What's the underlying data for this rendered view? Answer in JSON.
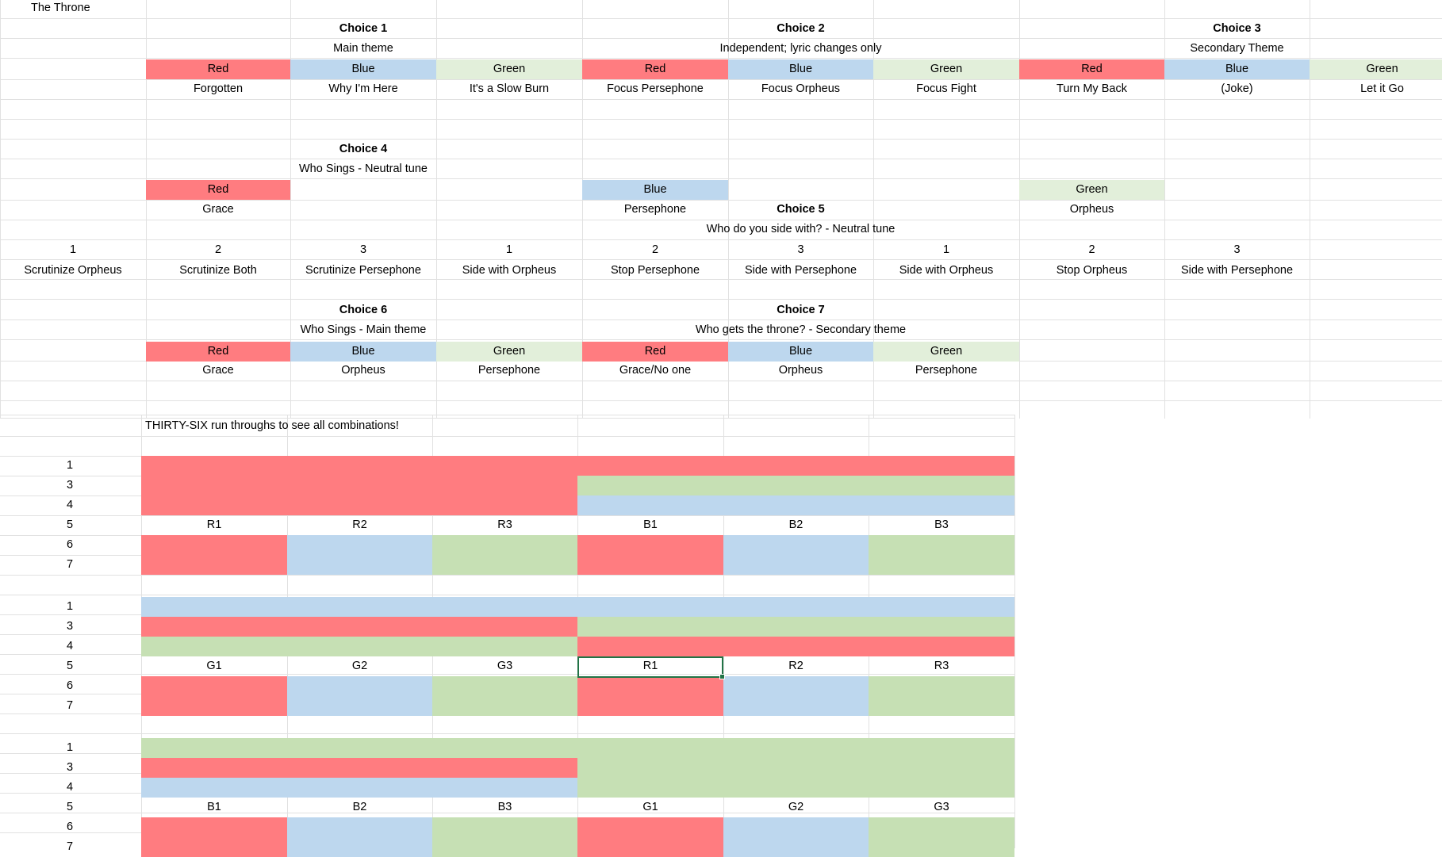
{
  "colors": {
    "red": "#ff7c80",
    "blue": "#bdd7ee",
    "green_light": "#e2efda",
    "green": "#c6e0b4",
    "selection": "#217346"
  },
  "sheet": {
    "title": "The Throne",
    "choice1": {
      "title": "Choice 1",
      "subtitle": "Main theme",
      "options": [
        {
          "color": "Red",
          "label": "Forgotten"
        },
        {
          "color": "Blue",
          "label": "Why I'm Here"
        },
        {
          "color": "Green",
          "label": "It's a Slow Burn"
        }
      ]
    },
    "choice2": {
      "title": "Choice 2",
      "subtitle": "Independent; lyric changes only",
      "options": [
        {
          "color": "Red",
          "label": "Focus Persephone"
        },
        {
          "color": "Blue",
          "label": "Focus Orpheus"
        },
        {
          "color": "Green",
          "label": "Focus Fight"
        }
      ]
    },
    "choice3": {
      "title": "Choice 3",
      "subtitle": "Secondary Theme",
      "options": [
        {
          "color": "Red",
          "label": "Turn My Back"
        },
        {
          "color": "Blue",
          "label": "(Joke)"
        },
        {
          "color": "Green",
          "label": "Let it Go"
        }
      ]
    },
    "choice4": {
      "title": "Choice 4",
      "subtitle": "Who Sings - Neutral tune",
      "options": [
        {
          "color": "Red",
          "label": "Grace"
        },
        {
          "color": "Blue",
          "label": "Persephone"
        },
        {
          "color": "Green",
          "label": "Orpheus"
        }
      ]
    },
    "choice5": {
      "title": "Choice 5",
      "subtitle": "Who do you side with?  - Neutral tune",
      "numbers": [
        "1",
        "2",
        "3",
        "1",
        "2",
        "3",
        "1",
        "2",
        "3"
      ],
      "labels": [
        "Scrutinize Orpheus",
        "Scrutinize Both",
        "Scrutinize Persephone",
        "Side with Orpheus",
        "Stop Persephone",
        "Side with Persephone",
        "Side with Orpheus",
        "Stop Orpheus",
        "Side with Persephone"
      ]
    },
    "choice6": {
      "title": "Choice 6",
      "subtitle": "Who Sings -  Main theme",
      "options": [
        {
          "color": "Red",
          "label": "Grace"
        },
        {
          "color": "Blue",
          "label": "Orpheus"
        },
        {
          "color": "Green",
          "label": "Persephone"
        }
      ]
    },
    "choice7": {
      "title": "Choice 7",
      "subtitle": "Who gets the throne? - Secondary theme",
      "options": [
        {
          "color": "Red",
          "label": "Grace/No one"
        },
        {
          "color": "Blue",
          "label": "Orpheus"
        },
        {
          "color": "Green",
          "label": "Persephone"
        }
      ]
    }
  },
  "runs": {
    "note": "THIRTY-SIX run throughs to see all combinations!",
    "blocks": [
      {
        "row_labels": [
          "1",
          "3",
          "4",
          "5",
          "6",
          "7"
        ],
        "row1": [
          "red"
        ],
        "row3": [
          "red",
          "green"
        ],
        "row4": [
          "red",
          "blue"
        ],
        "labels": [
          "R1",
          "R2",
          "R3",
          "B1",
          "B2",
          "B3"
        ]
      },
      {
        "row_labels": [
          "1",
          "3",
          "4",
          "5",
          "6",
          "7"
        ],
        "row1": [
          "blue"
        ],
        "row3": [
          "red",
          "green"
        ],
        "row4": [
          "green",
          "red"
        ],
        "labels": [
          "G1",
          "G2",
          "G3",
          "R1",
          "R2",
          "R3"
        ]
      },
      {
        "row_labels": [
          "1",
          "3",
          "4",
          "5",
          "6",
          "7"
        ],
        "row1": [
          "green"
        ],
        "row3": [
          "red",
          "green"
        ],
        "row4": [
          "blue",
          "green"
        ],
        "labels": [
          "B1",
          "B2",
          "B3",
          "G1",
          "G2",
          "G3"
        ]
      }
    ]
  }
}
